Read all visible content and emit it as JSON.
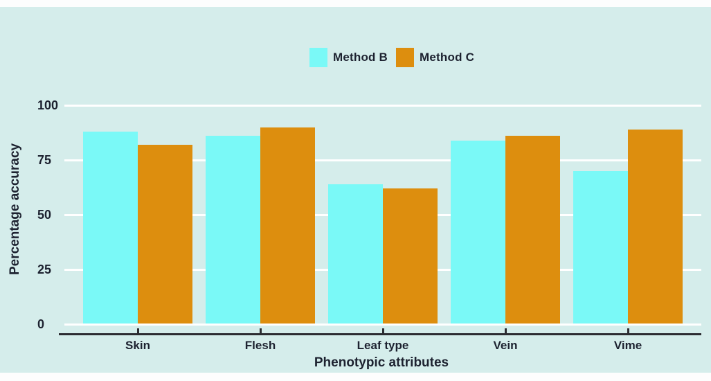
{
  "chart_data": {
    "type": "bar",
    "categories": [
      "Skin",
      "Flesh",
      "Leaf type",
      "Vein",
      "Vime"
    ],
    "series": [
      {
        "name": "Method B",
        "color": "#7af9f7",
        "values": [
          88,
          86,
          64,
          84,
          70
        ]
      },
      {
        "name": "Method C",
        "color": "#dd8e0e",
        "values": [
          82,
          90,
          62,
          86,
          89
        ]
      }
    ],
    "title": "",
    "xlabel": "Phenotypic attributes",
    "ylabel": "Percentage accuracy",
    "ylim": [
      0,
      100
    ],
    "yticks": [
      0,
      25,
      50,
      75,
      100
    ],
    "grid": true,
    "legend_position": "top-center"
  },
  "styles": {
    "background": "#d5edeb",
    "gridline": "#ffffff",
    "axis_line": "#2b2c31",
    "text": "#1d2230",
    "page": "#ffffff"
  }
}
